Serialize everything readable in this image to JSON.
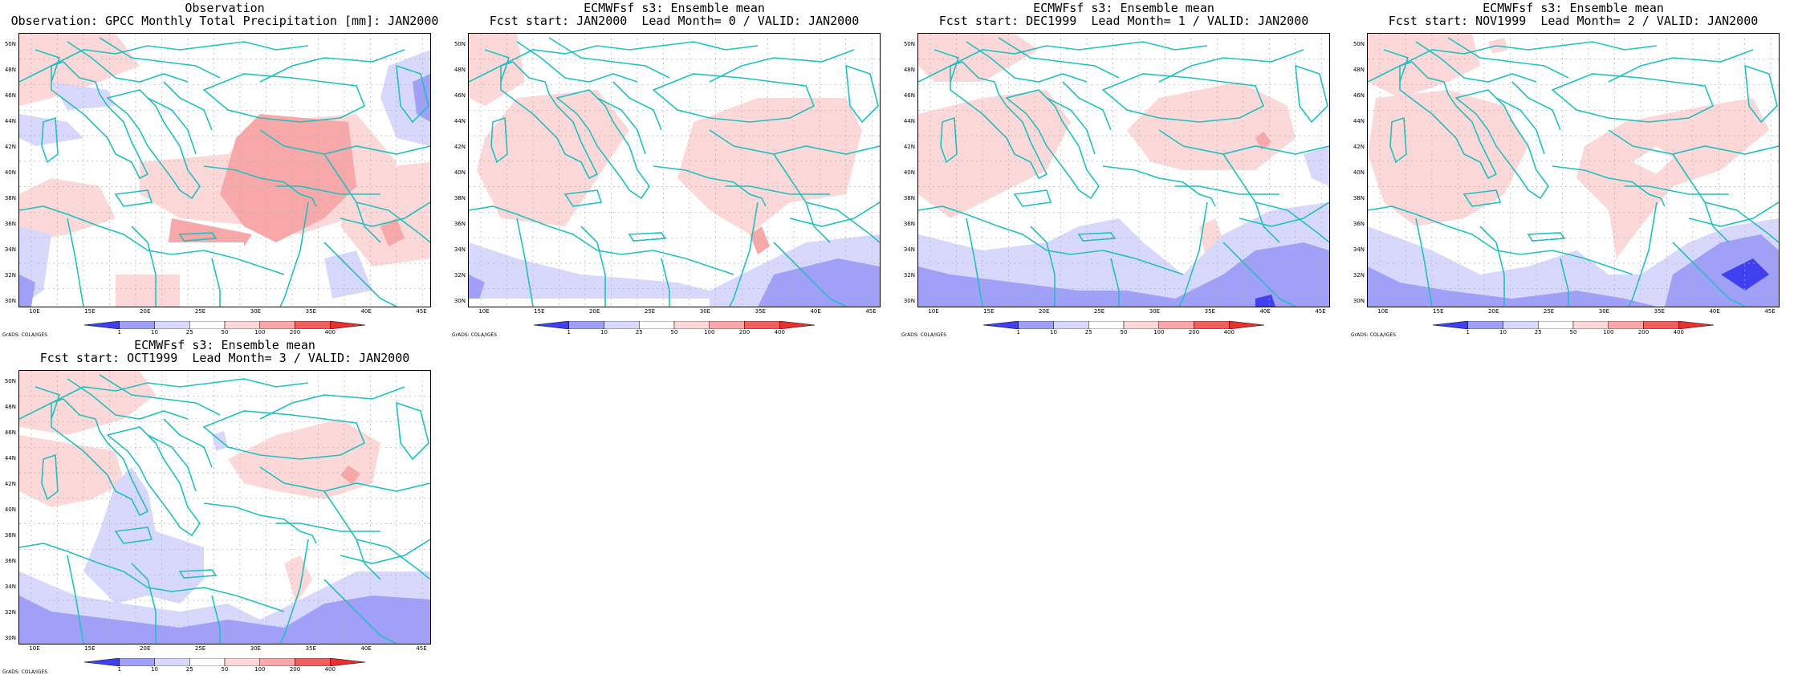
{
  "panels": [
    {
      "title1": "Observation",
      "title2": "Observation: GPCC Monthly Total Precipitation [mm]: JAN2000"
    },
    {
      "title1": "ECMWFsf s3: Ensemble mean",
      "title2": "Fcst start: JAN2000  Lead Month= 0 / VALID: JAN2000"
    },
    {
      "title1": "ECMWFsf s3: Ensemble mean",
      "title2": "Fcst start: DEC1999  Lead Month= 1 / VALID: JAN2000"
    },
    {
      "title1": "ECMWFsf s3: Ensemble mean",
      "title2": "Fcst start: NOV1999  Lead Month= 2 / VALID: JAN2000"
    },
    {
      "title1": "ECMWFsf s3: Ensemble mean",
      "title2": "Fcst start: OCT1999  Lead Month= 3 / VALID: JAN2000"
    }
  ],
  "lat_labels": [
    "50N",
    "48N",
    "46N",
    "44N",
    "42N",
    "40N",
    "38N",
    "36N",
    "34N",
    "32N",
    "30N"
  ],
  "lon_labels": [
    "10E",
    "15E",
    "20E",
    "25E",
    "30E",
    "35E",
    "40E",
    "45E"
  ],
  "colorbar": {
    "labels": [
      "1",
      "10",
      "25",
      "50",
      "100",
      "200",
      "400"
    ],
    "colors": [
      "#4040f0",
      "#a0a0f8",
      "#d8d8fc",
      "#ffffff",
      "#fcd8d8",
      "#f8a8a8",
      "#f06060",
      "#e83030"
    ]
  },
  "grads_credit": "GrADS: COLA/IGES",
  "colors": {
    "coast": "#20c0c0",
    "grid": "#b0b0b0"
  }
}
